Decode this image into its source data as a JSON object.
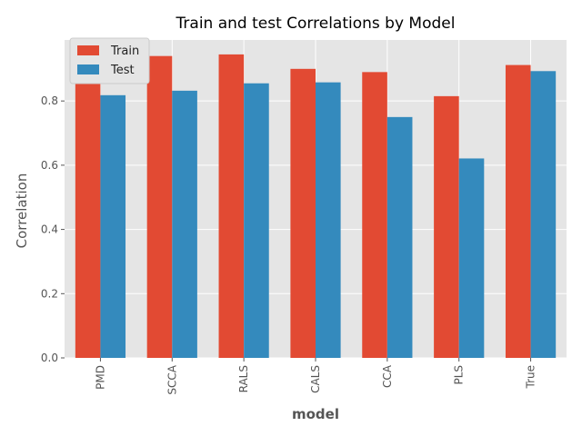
{
  "chart_data": {
    "type": "bar",
    "title": "Train and test Correlations by Model",
    "xlabel": "model",
    "ylabel": "Correlation",
    "categories": [
      "PMD",
      "SCCA",
      "RALS",
      "CALS",
      "CCA",
      "PLS",
      "True"
    ],
    "series": [
      {
        "name": "Train",
        "color": "#E24A33",
        "values": [
          0.885,
          0.94,
          0.945,
          0.9,
          0.89,
          0.815,
          0.912
        ]
      },
      {
        "name": "Test",
        "color": "#348ABD",
        "values": [
          0.818,
          0.832,
          0.855,
          0.858,
          0.75,
          0.621,
          0.893
        ]
      }
    ],
    "ylim": [
      0,
      0.99
    ],
    "yticks": [
      "0.0",
      "0.2",
      "0.4",
      "0.6",
      "0.8"
    ],
    "grid": true,
    "legend": "top-left",
    "plot_background": "#E5E5E5",
    "grid_color": "#FFFFFF"
  }
}
